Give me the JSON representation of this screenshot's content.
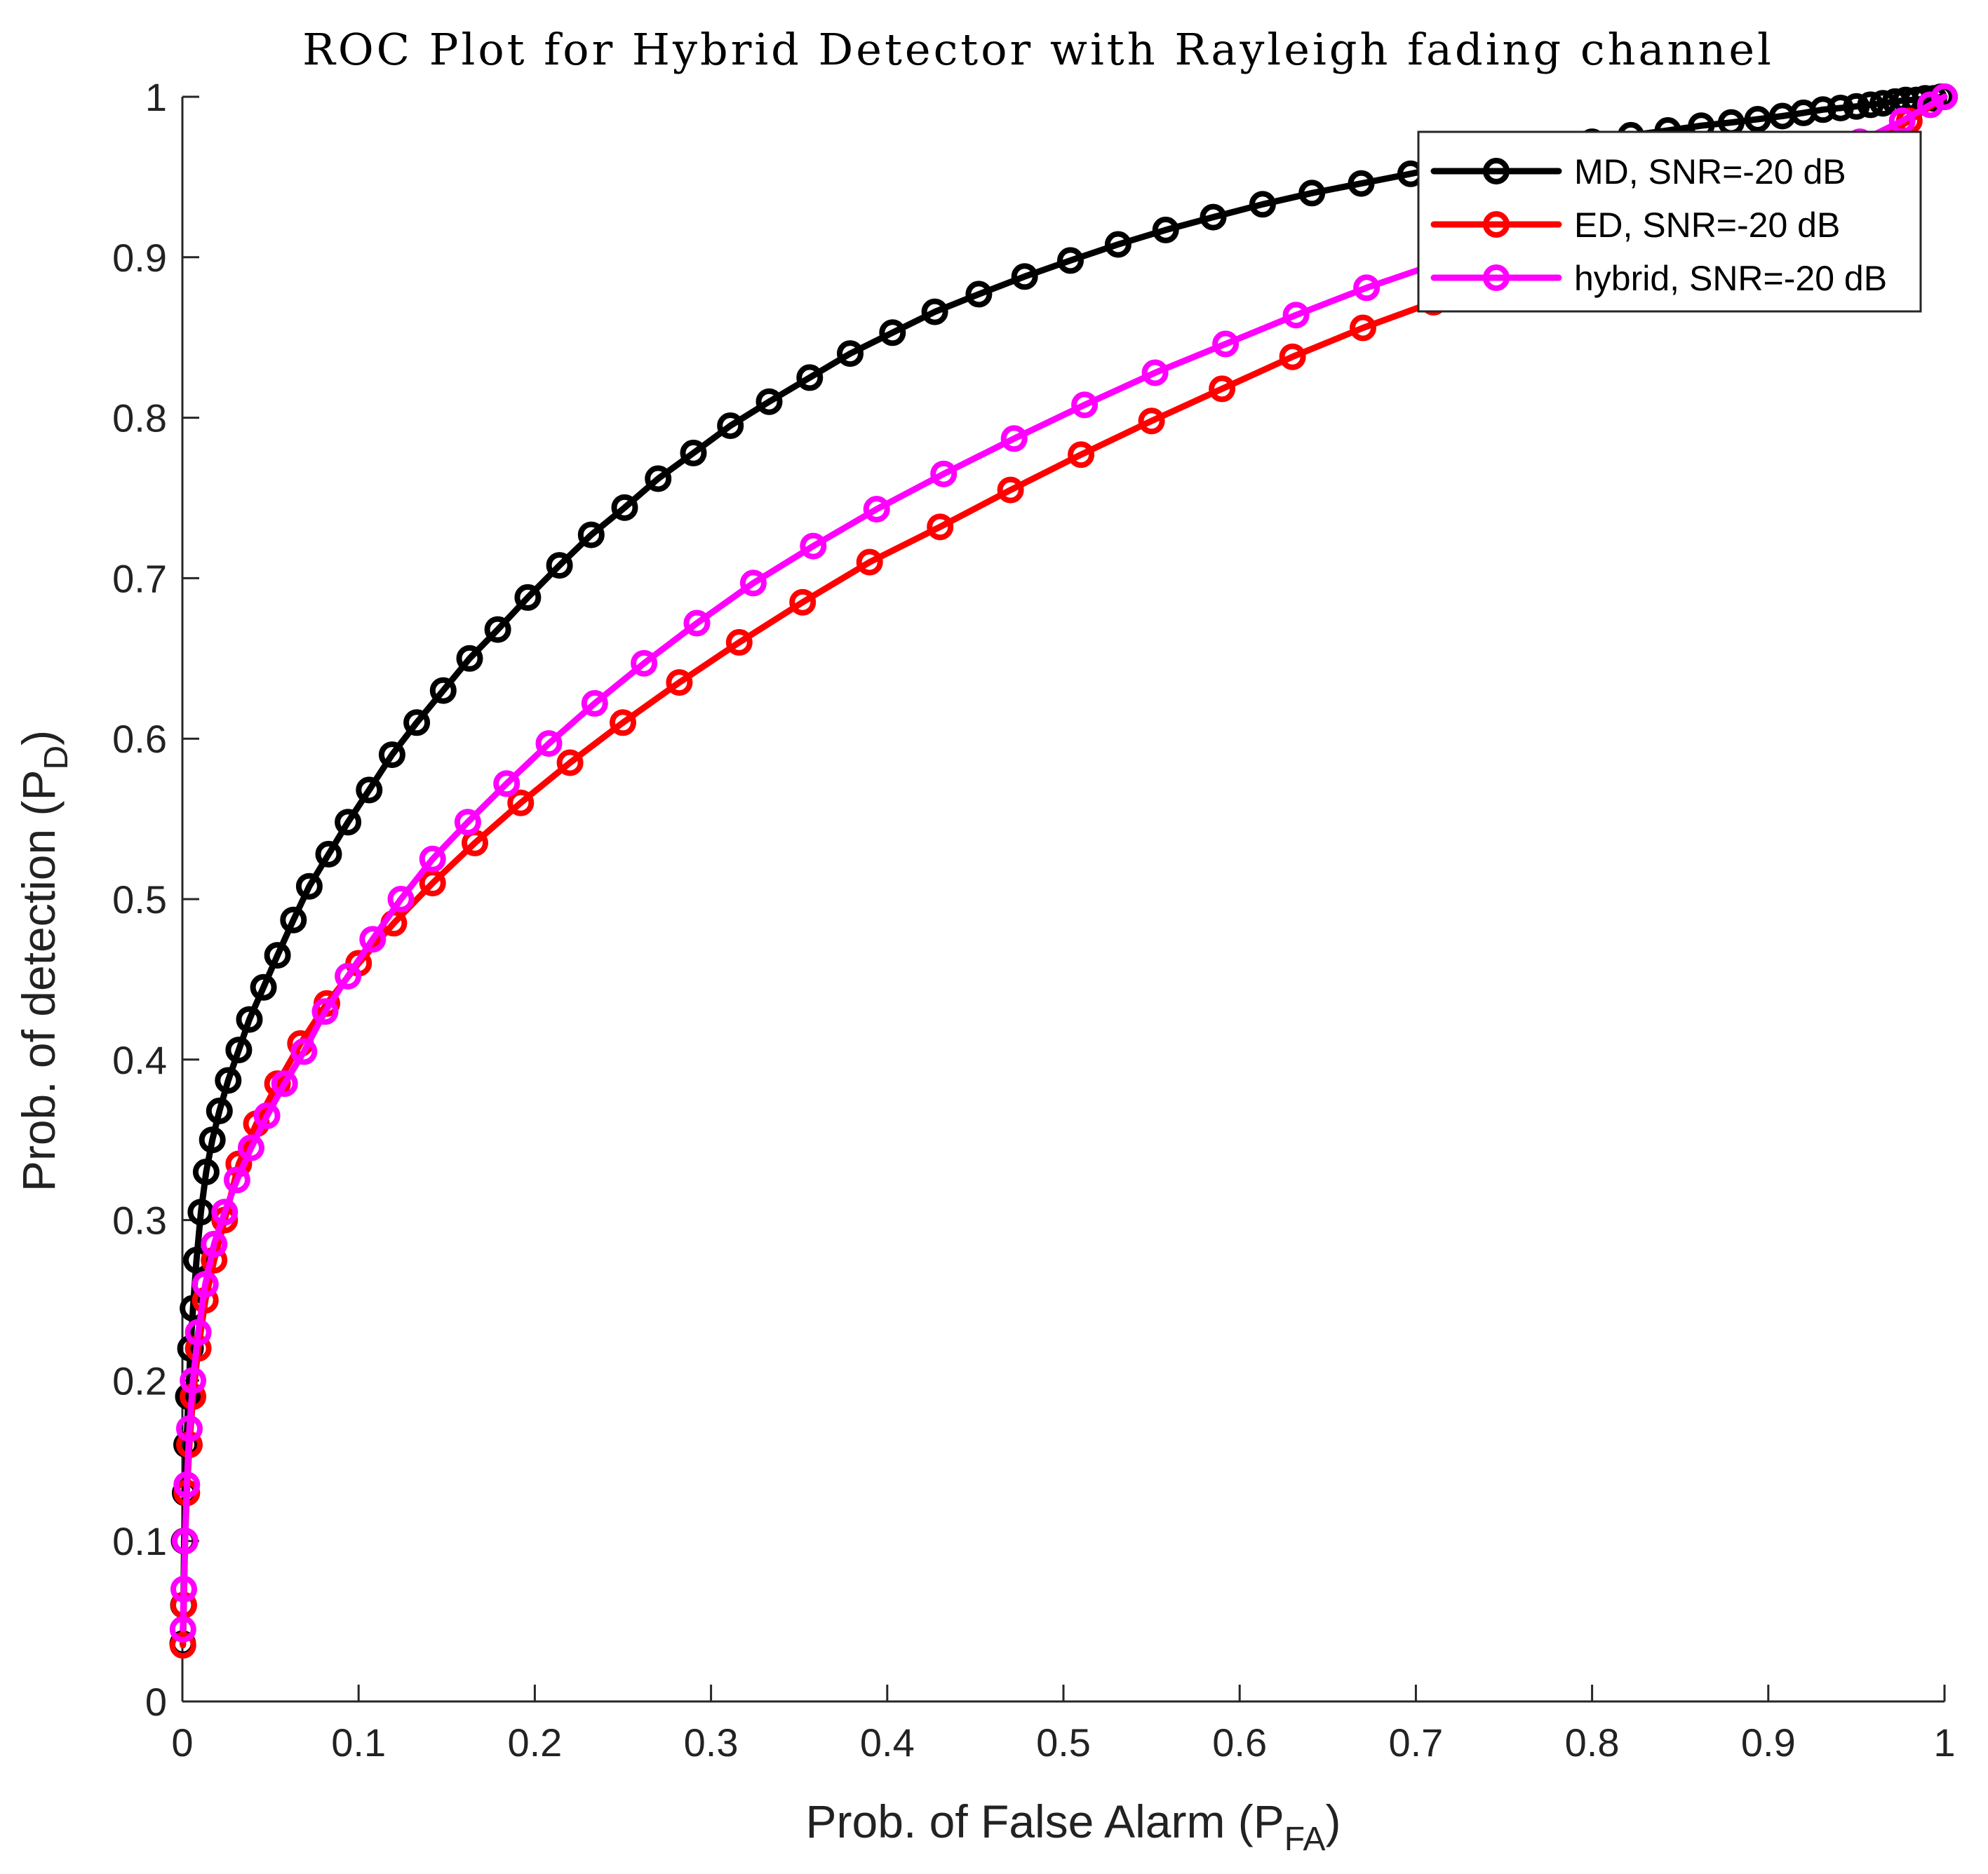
{
  "chart_data": {
    "type": "line",
    "title": "ROC Plot for Hybrid Detector with Rayleigh fading channel",
    "xlabel": {
      "main": "Prob. of False Alarm (P",
      "sub": "FA",
      "close": ")"
    },
    "ylabel": {
      "main": "Prob. of detection (P",
      "sub": "D",
      "close": ")"
    },
    "xlim": [
      0,
      1
    ],
    "ylim": [
      0,
      1
    ],
    "xticks": [
      "0",
      "0.1",
      "0.2",
      "0.3",
      "0.4",
      "0.5",
      "0.6",
      "0.7",
      "0.8",
      "0.9",
      "1"
    ],
    "yticks": [
      "0",
      "0.1",
      "0.2",
      "0.3",
      "0.4",
      "0.5",
      "0.6",
      "0.7",
      "0.8",
      "0.9",
      "1"
    ],
    "grid": false,
    "legend_position": "top-right",
    "series": [
      {
        "name": "MD, SNR=-20 dB",
        "color": "#000000",
        "x": [
          0.0002,
          0.0006,
          0.001,
          0.0016,
          0.0024,
          0.0034,
          0.0046,
          0.006,
          0.008,
          0.0105,
          0.0135,
          0.017,
          0.021,
          0.026,
          0.032,
          0.038,
          0.046,
          0.054,
          0.063,
          0.072,
          0.083,
          0.094,
          0.106,
          0.119,
          0.133,
          0.148,
          0.163,
          0.179,
          0.196,
          0.214,
          0.232,
          0.251,
          0.27,
          0.29,
          0.311,
          0.333,
          0.356,
          0.379,
          0.403,
          0.427,
          0.452,
          0.478,
          0.504,
          0.531,
          0.558,
          0.585,
          0.613,
          0.641,
          0.669,
          0.697,
          0.724,
          0.75,
          0.776,
          0.8,
          0.822,
          0.843,
          0.862,
          0.879,
          0.894,
          0.908,
          0.92,
          0.931,
          0.941,
          0.95,
          0.958,
          0.965,
          0.972,
          0.978,
          0.984,
          0.989,
          0.994,
          0.998,
          1.0
        ],
        "y": [
          0.036,
          0.06,
          0.1,
          0.13,
          0.16,
          0.19,
          0.22,
          0.245,
          0.275,
          0.305,
          0.33,
          0.35,
          0.368,
          0.387,
          0.406,
          0.425,
          0.445,
          0.465,
          0.487,
          0.508,
          0.528,
          0.548,
          0.568,
          0.59,
          0.61,
          0.63,
          0.65,
          0.668,
          0.688,
          0.708,
          0.727,
          0.744,
          0.762,
          0.778,
          0.795,
          0.81,
          0.825,
          0.84,
          0.853,
          0.866,
          0.877,
          0.888,
          0.898,
          0.908,
          0.917,
          0.925,
          0.933,
          0.94,
          0.946,
          0.952,
          0.958,
          0.963,
          0.968,
          0.972,
          0.976,
          0.979,
          0.982,
          0.984,
          0.986,
          0.988,
          0.99,
          0.992,
          0.993,
          0.994,
          0.995,
          0.996,
          0.997,
          0.998,
          0.998,
          0.999,
          0.999,
          1.0,
          1.0
        ]
      },
      {
        "name": "ED, SNR=-20 dB",
        "color": "#ff0000",
        "x": [
          0.0003,
          0.0008,
          0.0015,
          0.0025,
          0.004,
          0.006,
          0.009,
          0.013,
          0.018,
          0.024,
          0.032,
          0.042,
          0.054,
          0.067,
          0.082,
          0.1,
          0.12,
          0.142,
          0.166,
          0.192,
          0.22,
          0.25,
          0.282,
          0.316,
          0.352,
          0.39,
          0.43,
          0.47,
          0.51,
          0.55,
          0.59,
          0.63,
          0.67,
          0.71,
          0.75,
          0.79,
          0.83,
          0.87,
          0.91,
          0.95,
          0.98,
          1.0
        ],
        "y": [
          0.035,
          0.06,
          0.1,
          0.13,
          0.16,
          0.19,
          0.22,
          0.25,
          0.275,
          0.3,
          0.335,
          0.36,
          0.385,
          0.41,
          0.435,
          0.46,
          0.485,
          0.51,
          0.535,
          0.56,
          0.585,
          0.61,
          0.635,
          0.66,
          0.685,
          0.71,
          0.732,
          0.755,
          0.777,
          0.798,
          0.818,
          0.838,
          0.856,
          0.872,
          0.888,
          0.903,
          0.918,
          0.933,
          0.948,
          0.966,
          0.985,
          1.0
        ]
      },
      {
        "name": "hybrid, SNR=-20 dB",
        "color": "#ff00ff",
        "x": [
          0.0003,
          0.0008,
          0.0015,
          0.0025,
          0.004,
          0.006,
          0.009,
          0.013,
          0.018,
          0.024,
          0.031,
          0.039,
          0.048,
          0.058,
          0.069,
          0.081,
          0.094,
          0.108,
          0.124,
          0.142,
          0.162,
          0.184,
          0.208,
          0.234,
          0.262,
          0.292,
          0.324,
          0.358,
          0.394,
          0.432,
          0.472,
          0.512,
          0.552,
          0.592,
          0.632,
          0.672,
          0.712,
          0.752,
          0.792,
          0.832,
          0.872,
          0.912,
          0.952,
          0.976,
          0.992,
          1.0
        ],
        "y": [
          0.045,
          0.07,
          0.1,
          0.135,
          0.17,
          0.2,
          0.23,
          0.26,
          0.285,
          0.305,
          0.325,
          0.345,
          0.365,
          0.385,
          0.405,
          0.43,
          0.452,
          0.475,
          0.5,
          0.525,
          0.548,
          0.572,
          0.597,
          0.622,
          0.647,
          0.672,
          0.697,
          0.72,
          0.743,
          0.765,
          0.787,
          0.808,
          0.828,
          0.846,
          0.864,
          0.881,
          0.896,
          0.91,
          0.923,
          0.935,
          0.947,
          0.959,
          0.972,
          0.985,
          0.995,
          1.0
        ]
      }
    ]
  }
}
